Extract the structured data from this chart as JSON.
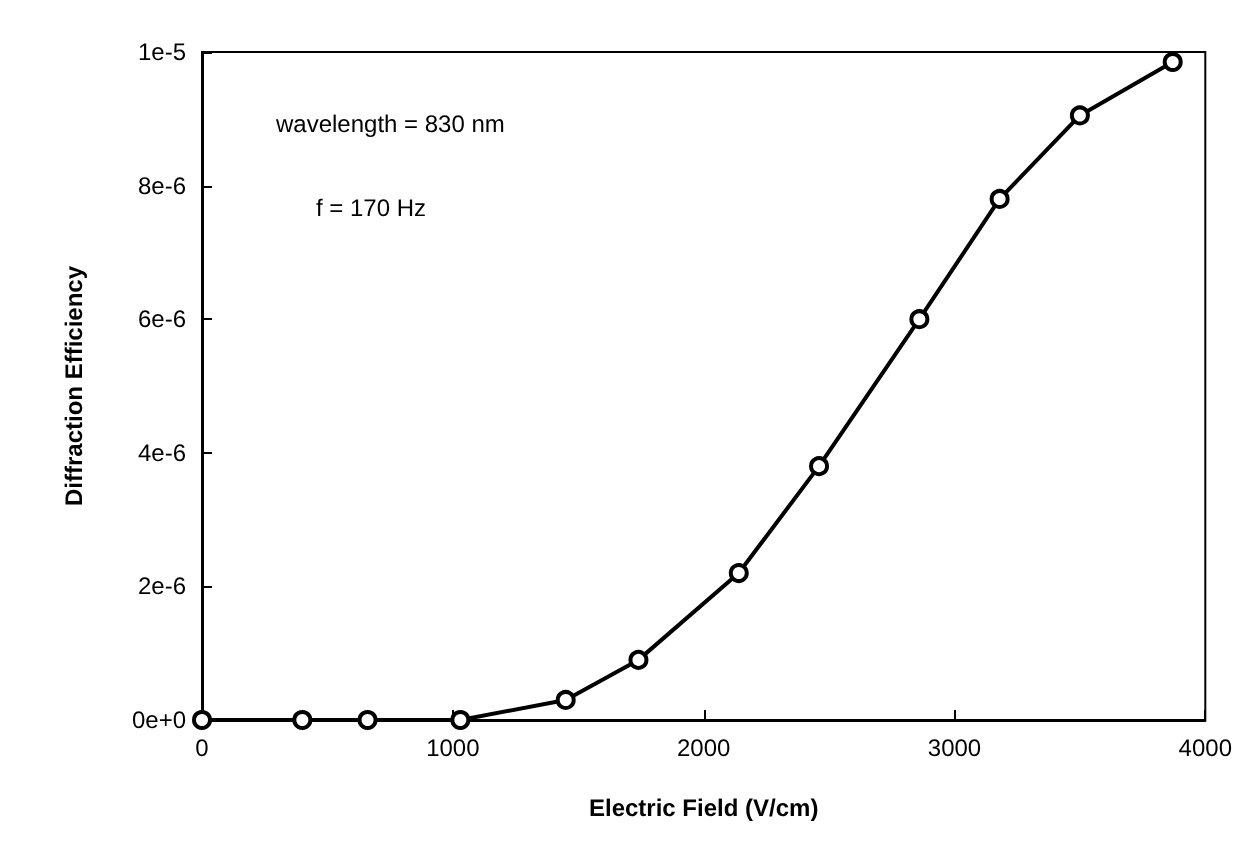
{
  "chart_data": {
    "type": "line",
    "xlabel": "Electric Field (V/cm)",
    "ylabel": "Diffraction Efficiency",
    "annotations": [
      "wavelength = 830 nm",
      "f = 170 Hz"
    ],
    "x": [
      0,
      400,
      660,
      1030,
      1450,
      1740,
      2140,
      2460,
      2860,
      3180,
      3500,
      3870
    ],
    "series": [
      {
        "color": "#000000",
        "values": [
          0,
          0,
          0,
          0,
          3e-07,
          9e-07,
          2.2e-06,
          3.8e-06,
          6e-06,
          7.8e-06,
          9.05e-06,
          9.85e-06
        ]
      }
    ],
    "xlim": [
      0,
      4000
    ],
    "xticks": [
      0,
      1000,
      2000,
      3000,
      4000
    ],
    "ylim": [
      0,
      1e-05
    ],
    "yticks": [
      {
        "value": 0,
        "label": "0e+0"
      },
      {
        "value": 2e-06,
        "label": "2e-6"
      },
      {
        "value": 4e-06,
        "label": "4e-6"
      },
      {
        "value": 6e-06,
        "label": "6e-6"
      },
      {
        "value": 8e-06,
        "label": "8e-6"
      },
      {
        "value": 1e-05,
        "label": "1e-5"
      }
    ],
    "grid": false,
    "marker": "circle",
    "line_style": "solid"
  }
}
